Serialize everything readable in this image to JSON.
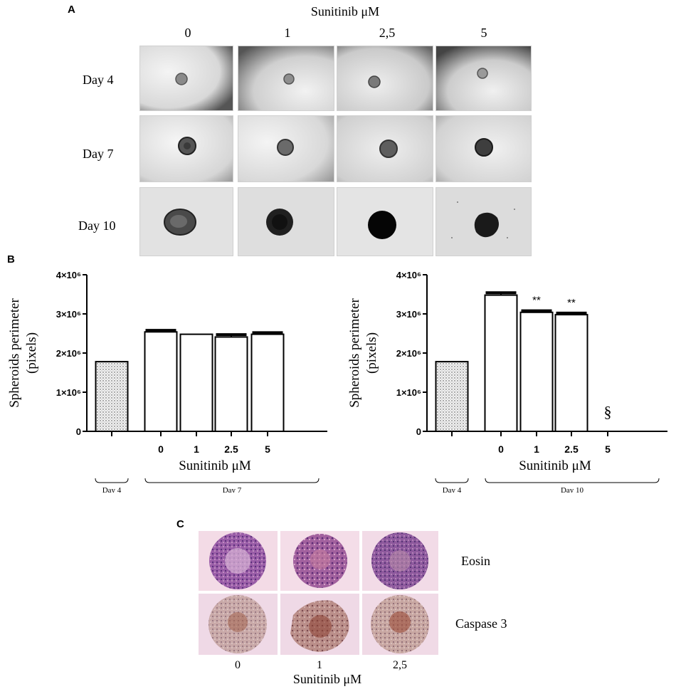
{
  "panelA": {
    "letter": "A",
    "title": "Sunitinib μM",
    "col_labels": [
      "0",
      "1",
      "2,5",
      "5"
    ],
    "row_labels": [
      "Day 4",
      "Day 7",
      "Day 10"
    ]
  },
  "panelB": {
    "letter": "B"
  },
  "panelC": {
    "letter": "C",
    "row_labels": [
      "Eosin",
      "Caspase 3"
    ],
    "col_labels": [
      "0",
      "1",
      "2,5"
    ],
    "xlabel": "Sunitinib μM"
  },
  "chart_data": [
    {
      "type": "bar",
      "categories": [
        "",
        "0",
        "1",
        "2.5",
        "5"
      ],
      "values": [
        1780000,
        2540000,
        2480000,
        2410000,
        2480000
      ],
      "errors": [
        0,
        40000,
        0,
        60000,
        40000
      ],
      "annotations": [
        "",
        "",
        "",
        "",
        ""
      ],
      "ylabel": "Spheroids perimeter (pixels)",
      "xlabel": "Sunitinib μM",
      "yticks": [
        "0",
        "1×10⁶",
        "2×10⁶",
        "3×10⁶",
        "4×10⁶"
      ],
      "ylim": [
        0,
        4000000
      ],
      "groups": [
        "Day 4",
        "Day 7"
      ],
      "first_bar_pattern": "dotted"
    },
    {
      "type": "bar",
      "categories": [
        "",
        "0",
        "1",
        "2.5",
        "5"
      ],
      "values": [
        1780000,
        3480000,
        3040000,
        2980000,
        0
      ],
      "errors": [
        0,
        60000,
        40000,
        40000,
        0
      ],
      "annotations": [
        "",
        "",
        "**",
        "**",
        "§"
      ],
      "ylabel": "Spheroids perimeter (pixels)",
      "xlabel": "Sunitinib μM",
      "yticks": [
        "0",
        "1×10⁶",
        "2×10⁶",
        "3×10⁶",
        "4×10⁶"
      ],
      "ylim": [
        0,
        4000000
      ],
      "groups": [
        "Day 4",
        "Day 10"
      ],
      "first_bar_pattern": "dotted"
    }
  ]
}
